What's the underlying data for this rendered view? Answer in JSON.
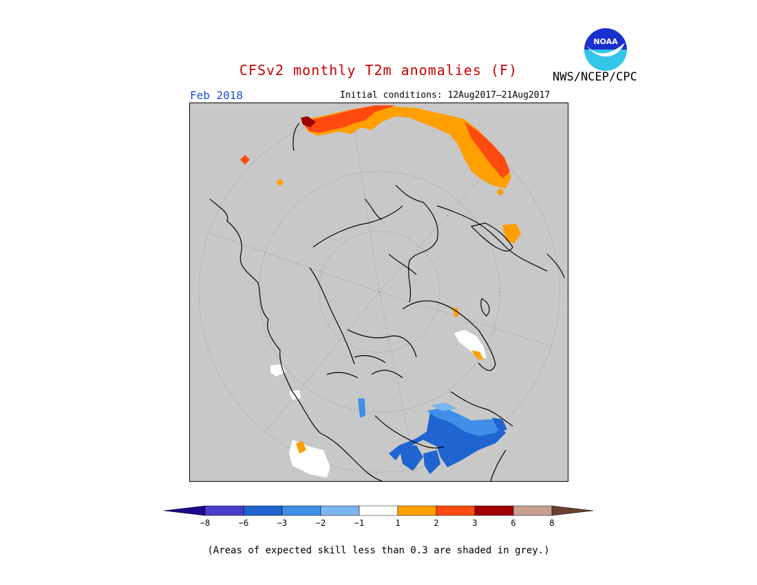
{
  "title": "CFSv2 monthly T2m anomalies (F)",
  "organization": "NWS/NCEP/CPC",
  "logo_text": "NOAA",
  "forecast_month": "Feb 2018",
  "initial_conditions": "Initial conditions: 12Aug2017–21Aug2017",
  "footnote": "(Areas of expected skill less than 0.3 are shaded in grey.)",
  "colors": {
    "title": "#cc0000",
    "month": "#1a4fd6",
    "map_background": "#c8c8c8",
    "coast": "#000000"
  },
  "legend": {
    "labels": [
      "−8",
      "−6",
      "−3",
      "−2",
      "−1",
      "1",
      "2",
      "3",
      "6",
      "8"
    ],
    "bins": [
      {
        "range": "< -8",
        "color": "#1a0a8c"
      },
      {
        "range": "-8 to -6",
        "color": "#4a3ccc"
      },
      {
        "range": "-6 to -3",
        "color": "#1f64d0"
      },
      {
        "range": "-3 to -2",
        "color": "#3f8ee8"
      },
      {
        "range": "-2 to -1",
        "color": "#7cb6f0"
      },
      {
        "range": "-1 to 1",
        "color": "#ffffff"
      },
      {
        "range": "1 to 2",
        "color": "#ff9f00"
      },
      {
        "range": "2 to 3",
        "color": "#ff4a10"
      },
      {
        "range": "3 to 6",
        "color": "#a00000"
      },
      {
        "range": "6 to 8",
        "color": "#c8a090"
      },
      {
        "range": "> 8",
        "color": "#6e4030"
      }
    ]
  }
}
